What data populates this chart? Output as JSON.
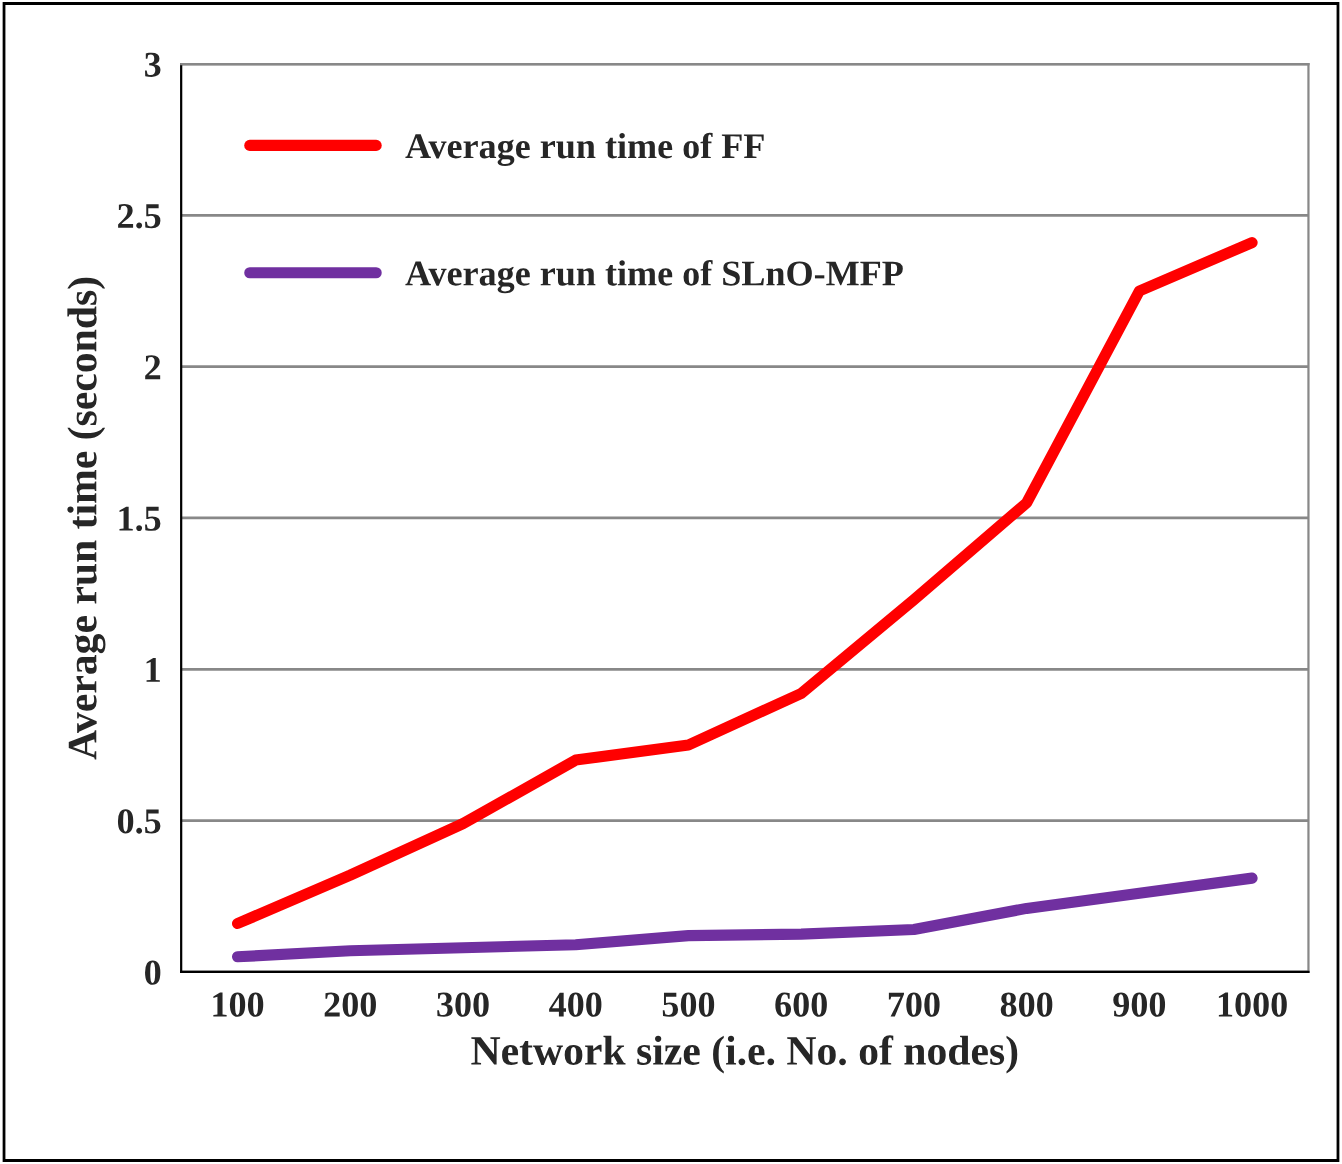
{
  "chart_data": {
    "type": "line",
    "xlabel": "Network size (i.e. No. of nodes)",
    "ylabel": "Average run time (seconds)",
    "categories": [
      "100",
      "200",
      "300",
      "400",
      "500",
      "600",
      "700",
      "800",
      "900",
      "1000"
    ],
    "series": [
      {
        "name": "Average run time of FF",
        "color": "#ff0000",
        "values": [
          0.16,
          0.32,
          0.49,
          0.7,
          0.75,
          0.92,
          1.23,
          1.55,
          2.25,
          2.41
        ]
      },
      {
        "name": "Average run time of SLnO-MFP",
        "color": "#7030a0",
        "values": [
          0.05,
          0.07,
          0.08,
          0.09,
          0.12,
          0.125,
          0.14,
          0.21,
          0.26,
          0.31
        ]
      }
    ],
    "ylim": [
      0,
      3
    ],
    "yticks": [
      0,
      0.5,
      1,
      1.5,
      2,
      2.5,
      3
    ],
    "grid": "y",
    "legend": "top left",
    "marker": "none",
    "line_style": "solid"
  }
}
